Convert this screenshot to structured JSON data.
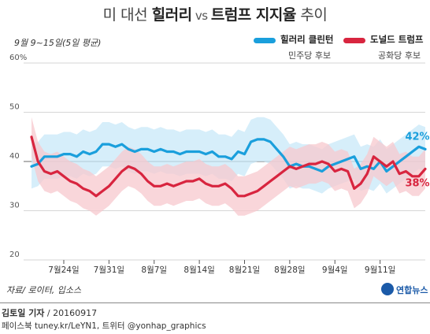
{
  "header": {
    "title_pre": "미 대선 ",
    "title_clinton": "힐러리",
    "title_vs": " vs ",
    "title_trump": "트럼프",
    "title_post_bold": " 지지율",
    "title_post": " 추이"
  },
  "subtitle": "9월 9~15일(5일 평균)",
  "legend": [
    {
      "name": "힐러리 클린턴",
      "party": "민주당 후보",
      "color": "#1a9fdc"
    },
    {
      "name": "도널드 트럼프",
      "party": "공화당 후보",
      "color": "#d8253f"
    }
  ],
  "footer": {
    "source": "자료/ 로이터, 입소스",
    "credit_bold": "김토일 기자",
    "credit_rest": " / 20160917",
    "social": "페이스북 tuney.kr/LeYN1, 트위터 @yonhap_graphics"
  },
  "logo": {
    "text": "연합뉴스"
  },
  "chart_data": {
    "type": "line",
    "ylim": [
      20,
      60
    ],
    "yticks": [
      "20",
      "30",
      "40",
      "50",
      "60%"
    ],
    "reference_line": 40,
    "x_tick_labels": [
      "7월24일",
      "7월31일",
      "8월7일",
      "8월14일",
      "8월21일",
      "8월28일",
      "9월4일",
      "9월11일"
    ],
    "x_tick_index": [
      5,
      12,
      19,
      26,
      33,
      40,
      47,
      54
    ],
    "dates_note": "",
    "end_labels": {
      "clinton": "42%",
      "trump": "38%"
    },
    "series": [
      {
        "name": "힐러리 클린턴",
        "color": "#1a9fdc",
        "band_color": "#c8e8f8",
        "values": [
          39,
          39.5,
          41,
          41,
          41,
          41.5,
          41.5,
          41,
          42,
          41.5,
          42,
          43.5,
          43.5,
          43,
          43.5,
          42.5,
          42,
          42.5,
          42.5,
          42,
          42.5,
          42,
          42,
          41.5,
          42,
          42,
          42,
          41.5,
          42,
          41,
          41,
          40.5,
          42,
          41.5,
          44,
          44.5,
          44.5,
          44,
          42.5,
          41,
          39,
          39.5,
          39,
          39,
          38.5,
          38,
          39,
          39.5,
          40,
          40.5,
          41,
          38.5,
          39,
          38.5,
          40,
          38,
          39,
          40,
          41,
          42,
          43,
          42.5
        ],
        "band_width": 4.5
      },
      {
        "name": "도널드 트럼프",
        "color": "#d8253f",
        "band_color": "#f7c8ce",
        "values": [
          45,
          40,
          38,
          37.5,
          38,
          37,
          36,
          35.5,
          34.5,
          34,
          33,
          34,
          35,
          36.5,
          38,
          39,
          38.5,
          37.5,
          36,
          35,
          35,
          35.5,
          35,
          35.5,
          36,
          36,
          36.5,
          35.5,
          35,
          35,
          35.5,
          34.5,
          33,
          33,
          33.5,
          34,
          35,
          36,
          37,
          38,
          39,
          38.5,
          39,
          39.5,
          39.5,
          40,
          39.5,
          38,
          38.5,
          38,
          34.5,
          35.5,
          37.5,
          41,
          40,
          39,
          40,
          37.5,
          38,
          37,
          37,
          38.5
        ],
        "band_width": 4
      }
    ]
  }
}
